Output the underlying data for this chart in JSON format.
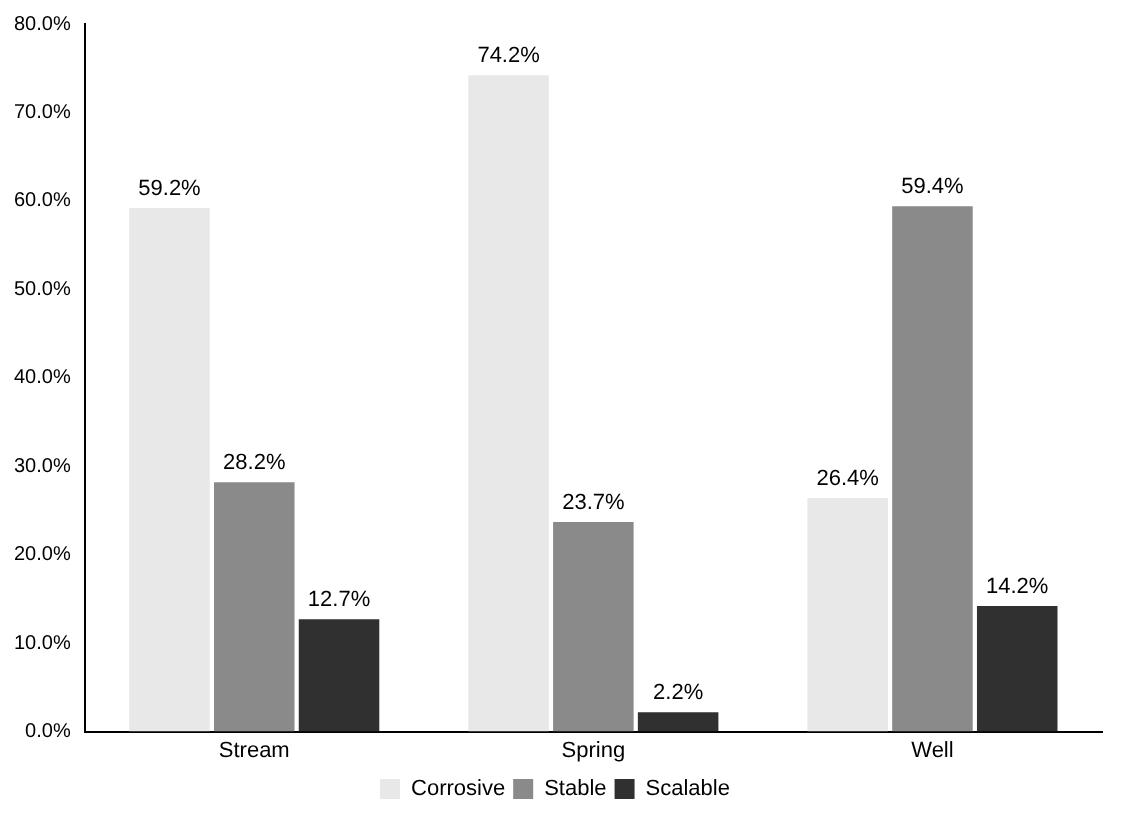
{
  "chart_data": {
    "type": "bar",
    "categories": [
      "Stream",
      "Spring",
      "Well"
    ],
    "series": [
      {
        "name": "Corrosive",
        "color": "#e8e8e8",
        "values": [
          59.2,
          74.2,
          26.4
        ],
        "value_labels": [
          "59.2%",
          "74.2%",
          "26.4%"
        ]
      },
      {
        "name": "Stable",
        "color": "#8a8a8a",
        "values": [
          28.2,
          23.7,
          59.4
        ],
        "value_labels": [
          "28.2%",
          "23.7%",
          "59.4%"
        ]
      },
      {
        "name": "Scalable",
        "color": "#303030",
        "values": [
          12.7,
          2.2,
          14.2
        ],
        "value_labels": [
          "12.7%",
          "2.2%",
          "14.2%"
        ]
      }
    ],
    "ylim": [
      0,
      80
    ],
    "yticks": [
      {
        "value": 0,
        "label": "0.0%"
      },
      {
        "value": 10,
        "label": "10.0%"
      },
      {
        "value": 20,
        "label": "20.0%"
      },
      {
        "value": 30,
        "label": "30.0%"
      },
      {
        "value": 40,
        "label": "40.0%"
      },
      {
        "value": 50,
        "label": "50.0%"
      },
      {
        "value": 60,
        "label": "60.0%"
      },
      {
        "value": 70,
        "label": "70.0%"
      },
      {
        "value": 80,
        "label": "80.0%"
      }
    ],
    "grid": false,
    "legend": "bottom"
  }
}
